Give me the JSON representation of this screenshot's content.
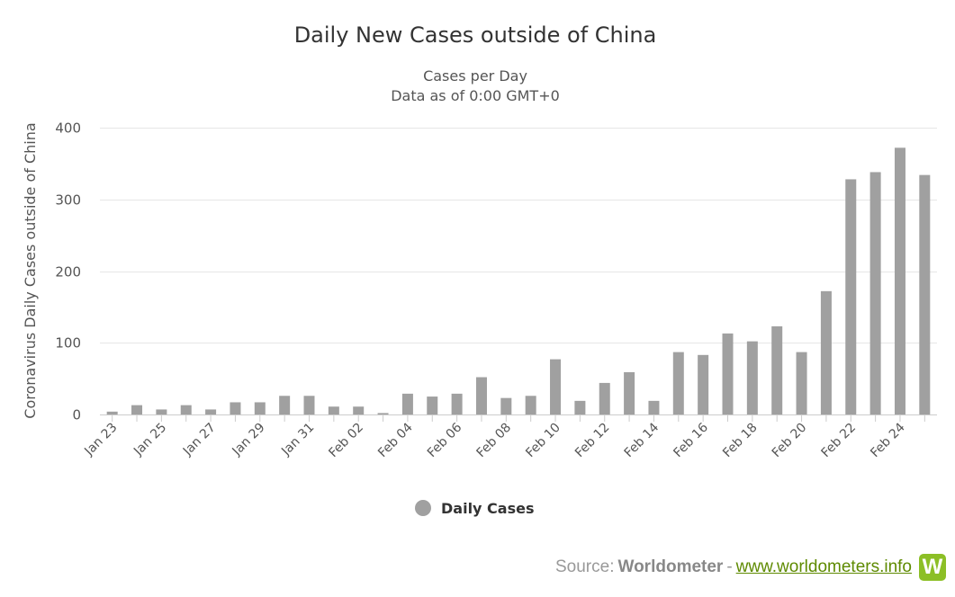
{
  "chart_data": {
    "type": "bar",
    "title": "Daily New Cases outside of China",
    "subtitle_lines": [
      "Cases per Day",
      "Data as of 0:00 GMT+0"
    ],
    "ylabel": "Coronavirus Daily Cases outside of China",
    "xlabel": "",
    "ylim": [
      0,
      400
    ],
    "yticks": [
      0,
      100,
      200,
      300,
      400
    ],
    "grid": true,
    "legend_position": "bottom-center",
    "categories": [
      "Jan 23",
      "Jan 24",
      "Jan 25",
      "Jan 26",
      "Jan 27",
      "Jan 28",
      "Jan 29",
      "Jan 30",
      "Jan 31",
      "Feb 01",
      "Feb 02",
      "Feb 03",
      "Feb 04",
      "Feb 05",
      "Feb 06",
      "Feb 07",
      "Feb 08",
      "Feb 09",
      "Feb 10",
      "Feb 11",
      "Feb 12",
      "Feb 13",
      "Feb 14",
      "Feb 15",
      "Feb 16",
      "Feb 17",
      "Feb 18",
      "Feb 19",
      "Feb 20",
      "Feb 21",
      "Feb 22",
      "Feb 23",
      "Feb 24",
      "Feb 25"
    ],
    "tick_labels": [
      "Jan 23",
      "",
      "Jan 25",
      "",
      "Jan 27",
      "",
      "Jan 29",
      "",
      "Jan 31",
      "",
      "Feb 02",
      "",
      "Feb 04",
      "",
      "Feb 06",
      "",
      "Feb 08",
      "",
      "Feb 10",
      "",
      "Feb 12",
      "",
      "Feb 14",
      "",
      "Feb 16",
      "",
      "Feb 18",
      "",
      "Feb 20",
      "",
      "Feb 22",
      "",
      "Feb 24",
      ""
    ],
    "series": [
      {
        "name": "Daily Cases",
        "color": "#a0a0a0",
        "values": [
          4,
          13,
          7,
          13,
          7,
          17,
          17,
          26,
          26,
          11,
          11,
          2,
          29,
          25,
          29,
          52,
          23,
          26,
          77,
          19,
          44,
          59,
          19,
          87,
          83,
          113,
          102,
          123,
          87,
          172,
          328,
          338,
          372,
          334
        ]
      }
    ]
  },
  "footer": {
    "source_prefix": "Source: ",
    "brand": "Worldometer",
    "separator": " - ",
    "link": "www.worldometers.info",
    "logo_letter": "W",
    "logo_color": "#8cbf26"
  }
}
